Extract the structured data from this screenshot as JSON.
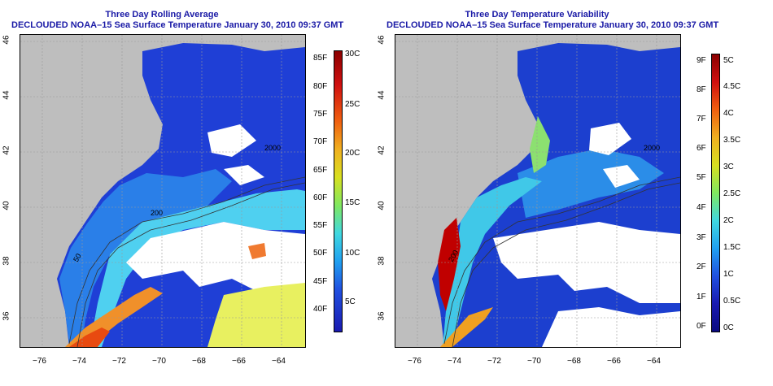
{
  "left": {
    "title": "Three Day Rolling Average",
    "subtitle": "DECLOUDED NOAA–15 Sea Surface Temperature January 30, 2010 09:37 GMT",
    "x_ticks": [
      "−76",
      "−74",
      "−72",
      "−70",
      "−68",
      "−66",
      "−64"
    ],
    "y_ticks": [
      "46",
      "44",
      "42",
      "40",
      "38",
      "36"
    ],
    "isobath_labels": [
      "2000",
      "200",
      "50"
    ],
    "colorbar": {
      "left_labels": [
        "85F",
        "80F",
        "75F",
        "70F",
        "65F",
        "60F",
        "55F",
        "50F",
        "45F",
        "40F"
      ],
      "right_labels": [
        "30C",
        "25C",
        "20C",
        "15C",
        "10C",
        "5C"
      ]
    }
  },
  "right": {
    "title": "Three Day Temperature Variability",
    "subtitle": "DECLOUDED NOAA–15 Sea Surface Temperature January 30, 2010 09:37 GMT",
    "x_ticks": [
      "−76",
      "−74",
      "−72",
      "−70",
      "−68",
      "−66",
      "−64"
    ],
    "y_ticks": [
      "46",
      "44",
      "42",
      "40",
      "38",
      "36"
    ],
    "isobath_labels": [
      "2000",
      "200"
    ],
    "colorbar": {
      "left_labels": [
        "9F",
        "8F",
        "7F",
        "6F",
        "5F",
        "4F",
        "3F",
        "2F",
        "1F",
        "0F"
      ],
      "right_labels": [
        "5C",
        "4.5C",
        "4C",
        "3.5C",
        "3C",
        "2.5C",
        "2C",
        "1.5C",
        "1C",
        "0.5C",
        "0C"
      ]
    }
  },
  "colors": {
    "title": "#1a1aa6",
    "land": "#bebebe",
    "cloud_mask": "#ffffff",
    "ocean_cold": "#1f3fd6",
    "ocean_warm": "#e84a10",
    "variability_high": "#a00000"
  }
}
